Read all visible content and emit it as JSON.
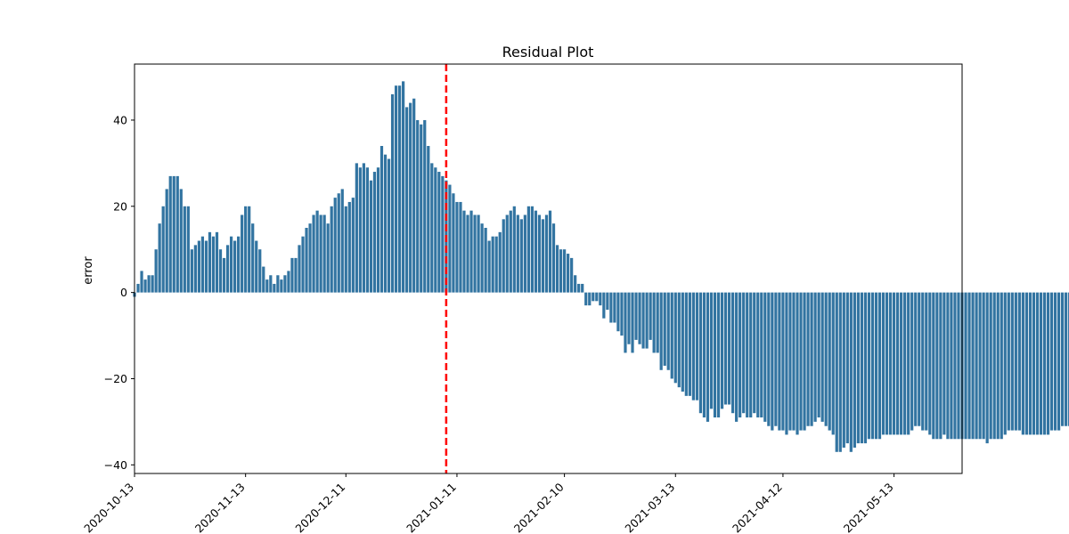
{
  "chart_data": {
    "type": "bar",
    "title": "Residual Plot",
    "xlabel": "",
    "ylabel": "error",
    "ylim": [
      -42,
      53
    ],
    "yticks": [
      -40,
      -20,
      0,
      20,
      40
    ],
    "xlim": [
      "2020-10-13",
      "2021-06-01"
    ],
    "xticks": [
      "2020-10-13",
      "2020-11-13",
      "2020-12-11",
      "2021-01-11",
      "2021-02-10",
      "2021-03-13",
      "2021-04-12",
      "2021-05-13"
    ],
    "x_tick_rotation": 45,
    "grid": false,
    "bar_color": "#3274a1",
    "vline": {
      "x": "2021-01-08",
      "color": "#ff0000",
      "style": "dashed"
    },
    "series": [
      {
        "x_start": "2020-10-13",
        "values": [
          -1,
          2,
          5,
          3,
          4,
          4,
          10,
          16,
          20,
          24,
          27,
          27,
          27,
          24,
          20,
          20,
          10,
          11,
          12,
          13,
          12,
          14,
          13,
          14,
          10,
          8,
          11,
          13,
          12,
          13,
          18,
          20,
          20,
          16,
          12,
          10,
          6,
          3,
          4,
          2,
          4,
          3,
          4,
          5,
          8,
          8,
          11,
          13,
          15,
          16,
          18,
          19,
          18,
          18,
          16,
          20,
          22,
          23,
          24,
          20,
          21,
          22,
          30,
          29,
          30,
          29,
          26,
          28,
          29,
          34,
          32,
          31,
          46,
          48,
          48,
          49,
          43,
          44,
          45,
          40,
          39,
          40,
          34,
          30,
          29,
          28,
          27,
          26,
          25,
          23,
          21,
          21,
          19,
          18,
          19,
          18,
          18,
          16,
          15,
          12,
          13,
          13,
          14,
          17,
          18,
          19,
          20,
          18,
          17,
          18,
          20,
          20,
          19,
          18,
          17,
          18,
          19,
          16,
          11,
          10,
          10,
          9,
          8,
          4,
          2,
          2,
          -3,
          -3,
          -2,
          -2,
          -3,
          -6,
          -4,
          -7,
          -7,
          -9,
          -10,
          -14,
          -12,
          -14,
          -11,
          -12,
          -13,
          -13,
          -11,
          -14,
          -14,
          -18,
          -17,
          -18,
          -20,
          -21,
          -22,
          -23,
          -24,
          -24,
          -25,
          -25,
          -28,
          -29,
          -30,
          -27,
          -29,
          -29,
          -27,
          -26,
          -26,
          -28,
          -30,
          -29,
          -28,
          -29,
          -29,
          -28,
          -29,
          -29,
          -30,
          -31,
          -32,
          -31,
          -32,
          -32,
          -33,
          -32,
          -32,
          -33,
          -32,
          -32,
          -31,
          -31,
          -30,
          -29,
          -30,
          -31,
          -32,
          -33,
          -37,
          -37,
          -36,
          -35,
          -37,
          -36,
          -35,
          -35,
          -35,
          -34,
          -34,
          -34,
          -34,
          -33,
          -33,
          -33,
          -33,
          -33,
          -33,
          -33,
          -33,
          -32,
          -31,
          -31,
          -32,
          -32,
          -33,
          -34,
          -34,
          -34,
          -33,
          -34,
          -34,
          -34,
          -34,
          -34,
          -34,
          -34,
          -34,
          -34,
          -34,
          -34,
          -35,
          -34,
          -34,
          -34,
          -34,
          -33,
          -32,
          -32,
          -32,
          -32,
          -33,
          -33,
          -33,
          -33,
          -33,
          -33,
          -33,
          -33,
          -32,
          -32,
          -32,
          -31,
          -31,
          -31,
          -32,
          -32,
          -32,
          -32,
          -32,
          -33,
          -34,
          -34,
          -34,
          -34,
          -35
        ]
      }
    ]
  }
}
